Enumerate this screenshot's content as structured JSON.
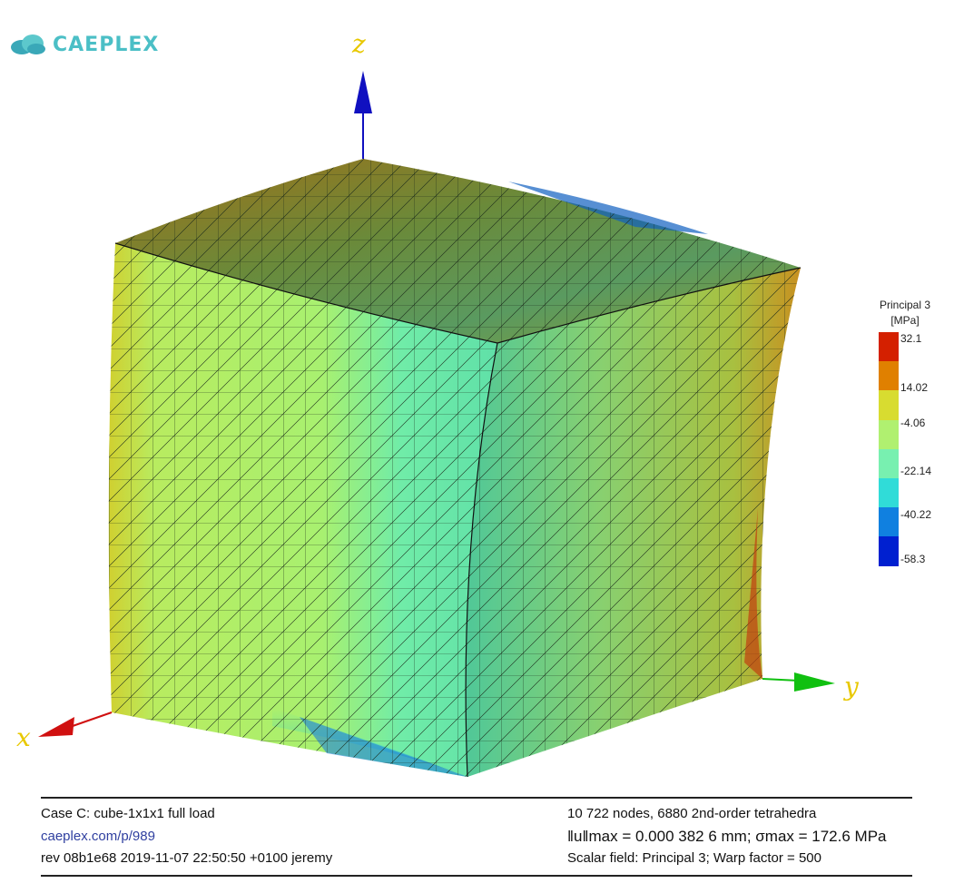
{
  "logo": {
    "text": "CAEPLEX"
  },
  "axes": {
    "x": "x",
    "y": "y",
    "z": "z",
    "colors": {
      "x": "#d01010",
      "y": "#10c010",
      "z": "#1010c0"
    }
  },
  "legend": {
    "title": "Principal 3",
    "unit": "[MPa]",
    "ticks": [
      "32.1",
      "14.02",
      "-4.06",
      "-22.14",
      "-40.22",
      "-58.3"
    ],
    "colors": [
      "#d42000",
      "#e08000",
      "#d8dc30",
      "#b0f070",
      "#78f0b0",
      "#30dcd8",
      "#1080e0",
      "#0020d0"
    ]
  },
  "footer": {
    "case": "Case C: cube-1x1x1 full load",
    "link": "caeplex.com/p/989",
    "rev": "rev 08b1e68 2019-11-07 22:50:50 +0100 jeremy",
    "mesh": "10 722 nodes, 6880 2nd-order tetrahedra",
    "umax": "‖u‖max = 0.000 382 6 mm; σmax = 172.6 MPa",
    "field": "Scalar field:  Principal 3; Warp factor = 500"
  }
}
